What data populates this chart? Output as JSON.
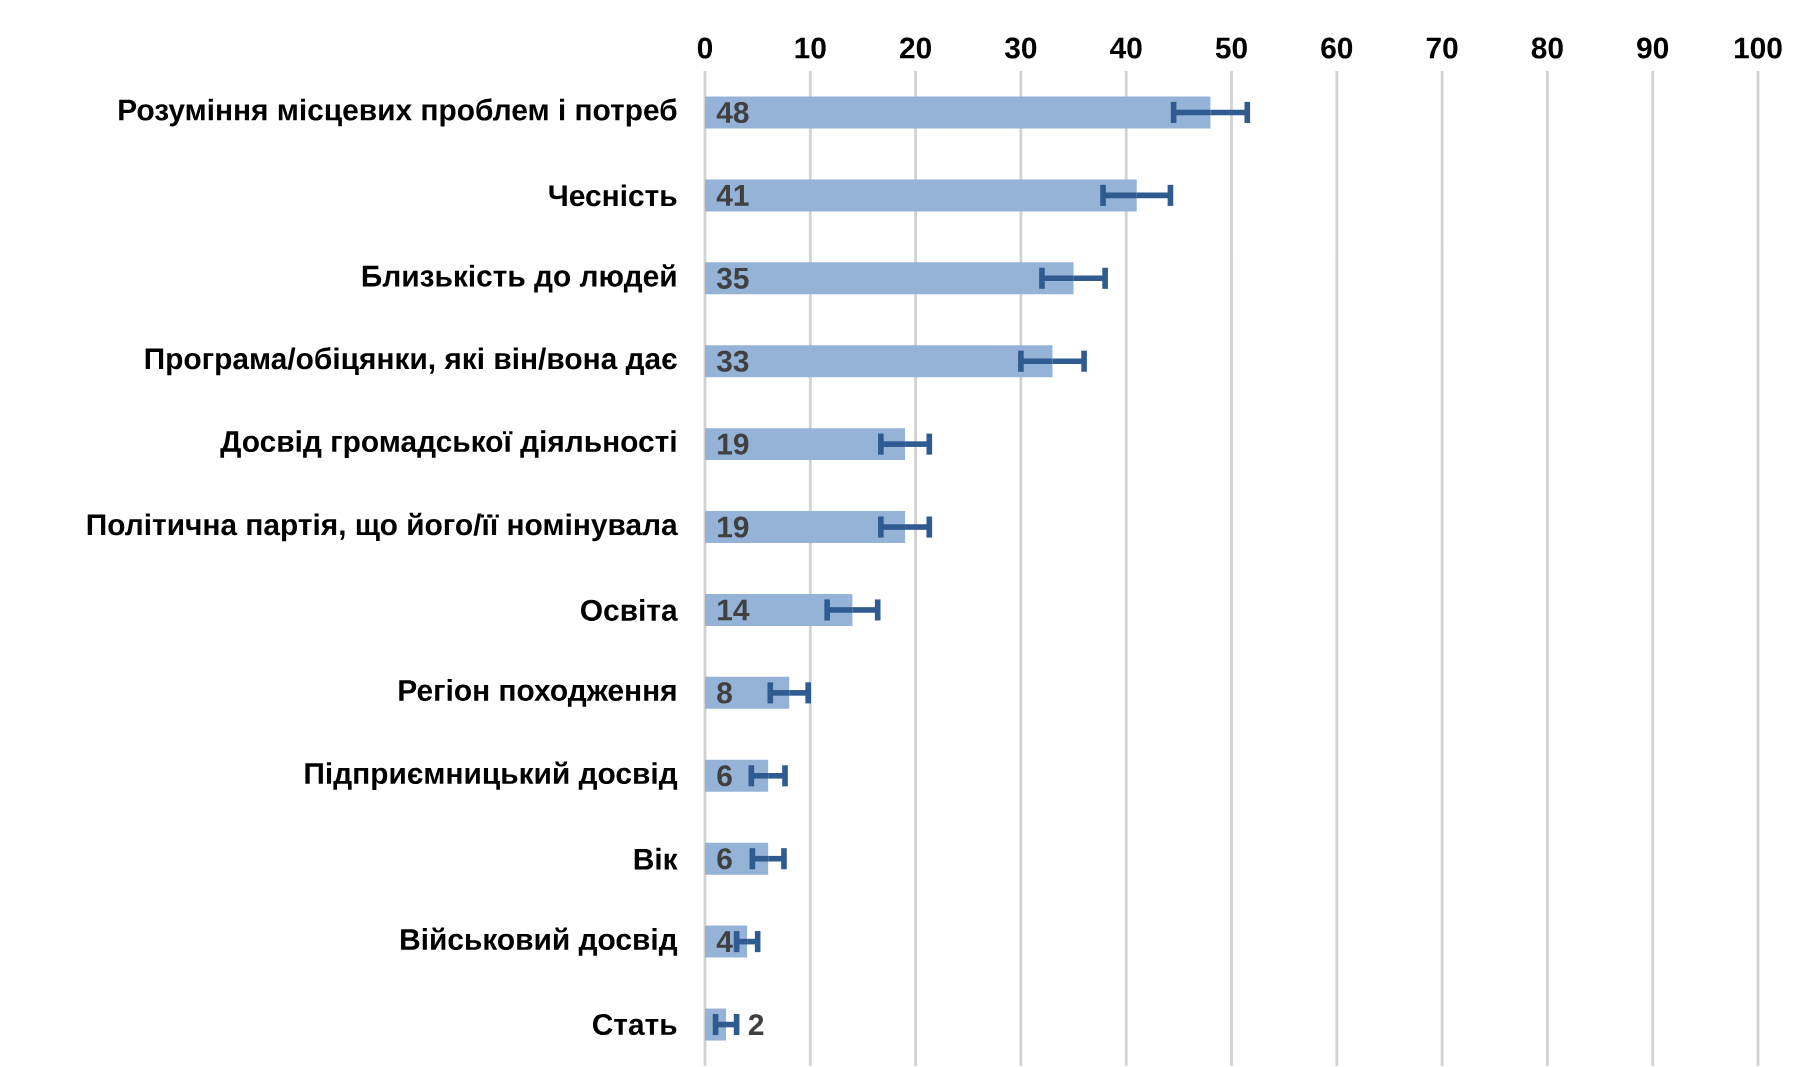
{
  "chart_data": {
    "type": "bar",
    "orientation": "horizontal",
    "categories": [
      "Розуміння місцевих проблем і потреб",
      "Чесність",
      "Близькість до людей",
      "Програма/обіцянки, які він/вона дає",
      "Досвід громадської діяльності",
      "Політична партія, що його/її номінувала",
      "Освіта",
      "Регіон походження",
      "Підприємницький досвід",
      "Вік",
      "Військовий досвід",
      "Стать"
    ],
    "values": [
      48,
      41,
      35,
      33,
      19,
      19,
      14,
      8,
      6,
      6,
      4,
      2
    ],
    "errors": [
      3.5,
      3.2,
      3,
      3,
      2.3,
      2.3,
      2.4,
      1.8,
      1.6,
      1.5,
      1,
      1
    ],
    "value_labels": [
      "48",
      "41",
      "35",
      "33",
      "19",
      "19",
      "14",
      "8",
      "6",
      "6",
      "4",
      "2"
    ],
    "color": "#95b3d7",
    "xlim": [
      0,
      100
    ],
    "xticks": [
      0,
      10,
      20,
      30,
      40,
      50,
      60,
      70,
      80,
      90,
      100
    ],
    "grid": "x"
  }
}
